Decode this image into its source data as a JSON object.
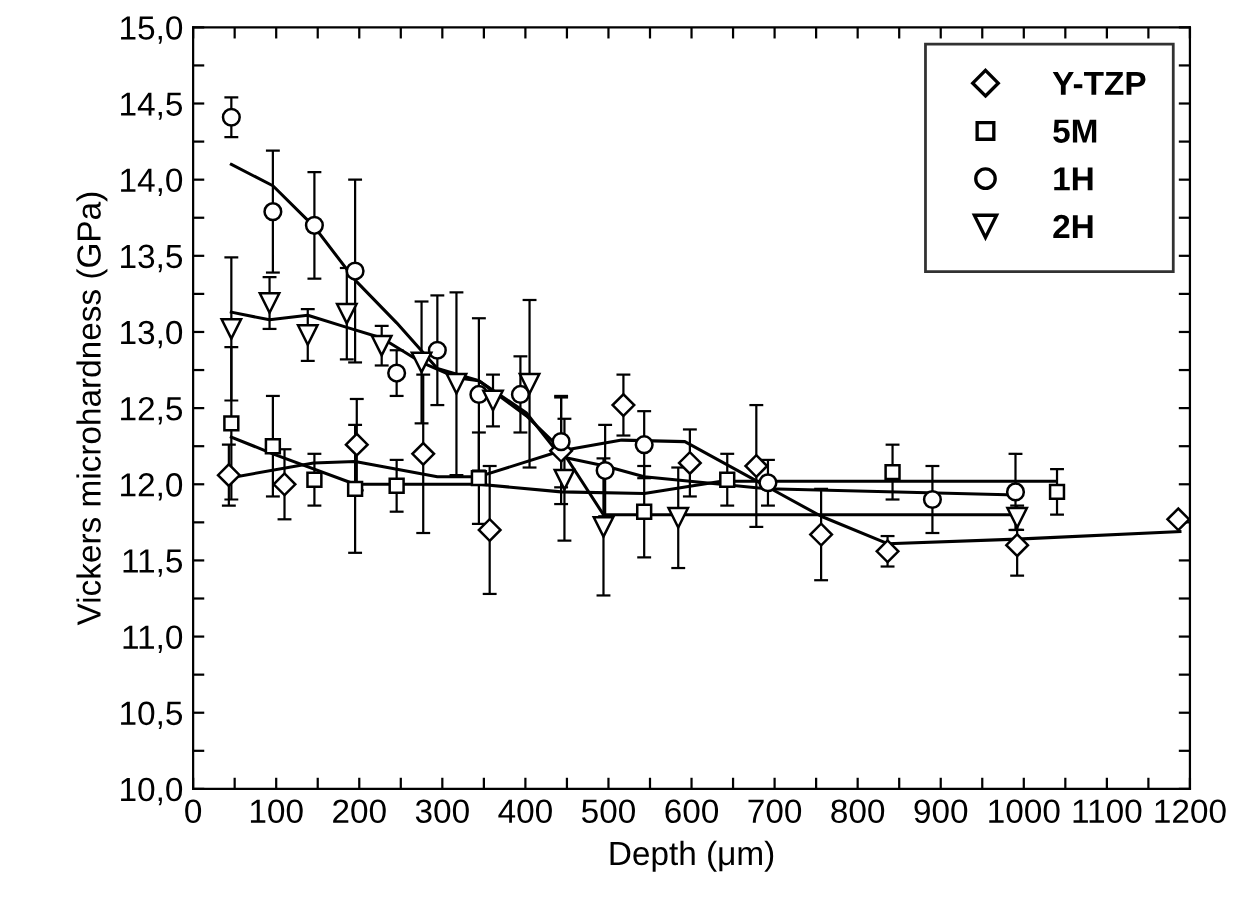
{
  "chart_data": {
    "type": "scatter",
    "xlabel": "Depth (μm)",
    "ylabel": "Vickers microhardness (GPa)",
    "xlim": [
      0,
      1200
    ],
    "ylim": [
      10,
      15
    ],
    "xticks": [
      0,
      {
        "value": 50,
        "label": null
      },
      100,
      {
        "value": 150,
        "label": null
      },
      200,
      {
        "value": 250,
        "label": null
      },
      300,
      {
        "value": 350,
        "label": null
      },
      400,
      {
        "value": 450,
        "label": null
      },
      500,
      {
        "value": 550,
        "label": null
      },
      600,
      {
        "value": 650,
        "label": null
      },
      700,
      {
        "value": 750,
        "label": null
      },
      800,
      {
        "value": 850,
        "label": null
      },
      900,
      {
        "value": 950,
        "label": null
      },
      1000,
      {
        "value": 1050,
        "label": null
      },
      1100,
      {
        "value": 1150,
        "label": null
      },
      1200
    ],
    "yticks": [
      {
        "value": 10,
        "label": "10,0"
      },
      {
        "value": 10.25,
        "label": null
      },
      {
        "value": 10.5,
        "label": "10,5"
      },
      {
        "value": 10.75,
        "label": null
      },
      {
        "value": 11,
        "label": "11,0"
      },
      {
        "value": 11.25,
        "label": null
      },
      {
        "value": 11.5,
        "label": "11,5"
      },
      {
        "value": 11.75,
        "label": null
      },
      {
        "value": 12,
        "label": "12,0"
      },
      {
        "value": 12.25,
        "label": null
      },
      {
        "value": 12.5,
        "label": "12,5"
      },
      {
        "value": 12.75,
        "label": null
      },
      {
        "value": 13,
        "label": "13,0"
      },
      {
        "value": 13.25,
        "label": null
      },
      {
        "value": 13.5,
        "label": "13,5"
      },
      {
        "value": 13.75,
        "label": null
      },
      {
        "value": 14,
        "label": "14,0"
      },
      {
        "value": 14.25,
        "label": null
      },
      {
        "value": 14.5,
        "label": "14,5"
      },
      {
        "value": 14.75,
        "label": null
      },
      {
        "value": 15,
        "label": "15,0"
      }
    ],
    "grid": false,
    "legend": "top right",
    "series": [
      {
        "name": "Y-TZP",
        "color": "#000000",
        "marker": "diamond",
        "x": [
          43,
          110,
          197,
          277,
          357,
          443,
          518,
          598,
          678,
          756,
          836,
          992,
          1186
        ],
        "values": [
          12.06,
          12.0,
          12.26,
          12.2,
          11.7,
          12.22,
          12.52,
          12.14,
          12.12,
          11.67,
          11.56,
          11.6,
          11.77
        ],
        "errors": [
          0.2,
          0.23,
          0.3,
          0.52,
          0.42,
          0.35,
          0.2,
          0.22,
          0.4,
          0.3,
          0.1,
          0.2,
          null
        ]
      },
      {
        "name": "5M",
        "color": "#000000",
        "marker": "square",
        "x": [
          46,
          96,
          146,
          195,
          245,
          344,
          443,
          543,
          643,
          842,
          1040
        ],
        "values": [
          12.4,
          12.25,
          12.03,
          11.97,
          11.99,
          12.04,
          null,
          11.82,
          12.03,
          12.08,
          11.95
        ],
        "errors": [
          0.5,
          0.33,
          0.17,
          0.42,
          0.17,
          0.3,
          null,
          0.3,
          0.17,
          0.18,
          0.15
        ]
      },
      {
        "name": "1H",
        "color": "#000000",
        "marker": "circle",
        "x": [
          46,
          96,
          146,
          195,
          245,
          294,
          344,
          394,
          443,
          496,
          543,
          692,
          890,
          990
        ],
        "values": [
          14.41,
          13.79,
          13.7,
          13.4,
          12.73,
          12.88,
          12.59,
          12.59,
          12.28,
          12.09,
          12.26,
          12.01,
          11.9,
          11.95
        ],
        "errors": [
          0.13,
          0.4,
          0.35,
          0.6,
          0.15,
          0.36,
          0.5,
          0.25,
          0.3,
          0.3,
          0.22,
          0.15,
          0.22,
          0.25
        ]
      },
      {
        "name": "2H",
        "color": "#000000",
        "marker": "triangle",
        "x": [
          46,
          92,
          138,
          185,
          227,
          275,
          317,
          361,
          405,
          447,
          494,
          584,
          992
        ],
        "values": [
          13.02,
          13.19,
          12.98,
          13.12,
          12.91,
          12.8,
          12.66,
          12.55,
          12.66,
          12.03,
          11.72,
          11.78,
          11.78
        ],
        "errors": [
          0.47,
          0.17,
          0.17,
          0.3,
          0.13,
          0.4,
          0.6,
          0.17,
          0.55,
          0.4,
          0.45,
          0.33,
          0.08
        ]
      },
      {
        "type": "line",
        "color": "#000000",
        "x": [
          42,
          145,
          195,
          294,
          344,
          443,
          516,
          592,
          756,
          836,
          992,
          1188
        ],
        "values": [
          12.04,
          12.14,
          12.15,
          12.05,
          12.05,
          12.22,
          12.29,
          12.28,
          11.79,
          11.61,
          11.64,
          11.69
        ]
      },
      {
        "type": "line",
        "color": "#000000",
        "x": [
          46,
          96,
          195,
          344,
          443,
          543,
          636,
          1039
        ],
        "values": [
          12.31,
          12.2,
          12.0,
          12.0,
          11.95,
          11.94,
          12.02,
          12.02
        ]
      },
      {
        "type": "line",
        "color": "#000000",
        "x": [
          46,
          96,
          146,
          195,
          245,
          294,
          344,
          401,
          443,
          496,
          543,
          692,
          990
        ],
        "values": [
          14.1,
          13.96,
          13.69,
          13.34,
          13.06,
          12.76,
          12.68,
          12.47,
          12.18,
          12.12,
          12.05,
          11.97,
          11.93
        ]
      },
      {
        "type": "line",
        "color": "#000000",
        "x": [
          46,
          92,
          138,
          185,
          227,
          275,
          317,
          344,
          401,
          443,
          494,
          543,
          992
        ],
        "values": [
          13.13,
          13.08,
          13.11,
          13.03,
          12.96,
          12.8,
          12.7,
          12.68,
          12.45,
          12.23,
          11.8,
          11.8,
          11.8
        ]
      }
    ]
  }
}
